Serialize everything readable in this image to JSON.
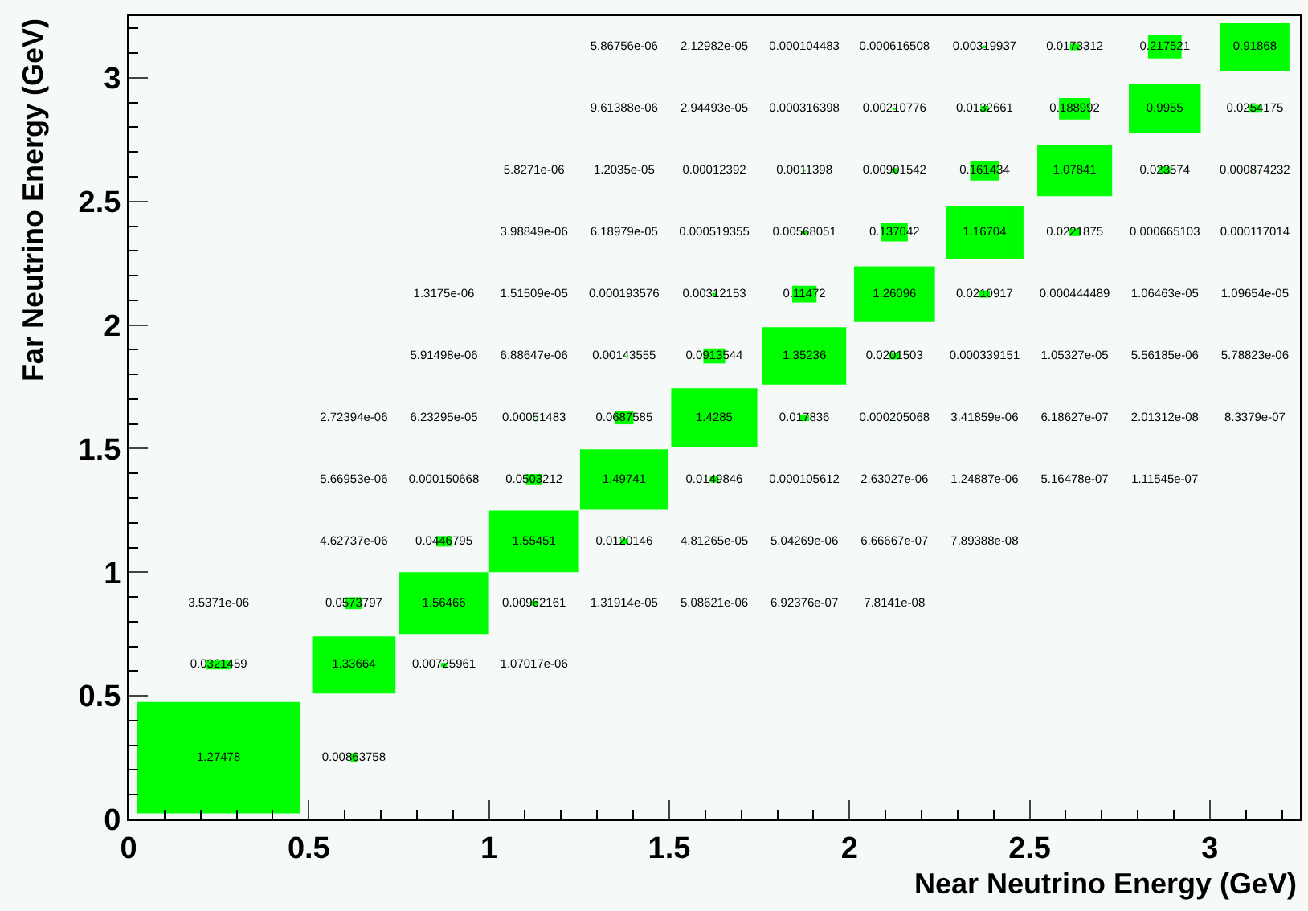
{
  "chart_data": {
    "type": "heatmap",
    "xlabel": "Near Neutrino Energy (GeV)",
    "ylabel": "Far Neutrino Energy (GeV)",
    "x": [
      0.25,
      0.625,
      0.875,
      1.125,
      1.375,
      1.625,
      1.875,
      2.125,
      2.375,
      2.625,
      2.875,
      3.125
    ],
    "y": [
      0.25,
      0.625,
      0.875,
      1.125,
      1.375,
      1.625,
      1.875,
      2.125,
      2.375,
      2.625,
      2.875,
      3.125
    ],
    "xlim": [
      0,
      3.25
    ],
    "ylim": [
      0,
      3.25
    ],
    "xticks": [
      0,
      0.5,
      1,
      1.5,
      2,
      2.5,
      3
    ],
    "yticks": [
      0,
      0.5,
      1,
      1.5,
      2,
      2.5,
      3
    ],
    "color": "#00ff00",
    "data_labels": true,
    "grid": false,
    "cells": [
      [
        1.27478,
        0.00863758,
        null,
        null,
        null,
        null,
        null,
        null,
        null,
        null,
        null,
        null
      ],
      [
        0.0321459,
        1.33664,
        0.00725961,
        1.07017e-06,
        null,
        null,
        null,
        null,
        null,
        null,
        null,
        null
      ],
      [
        3.5371e-06,
        0.0573797,
        1.56466,
        0.00962161,
        1.31914e-05,
        5.08621e-06,
        6.92376e-07,
        7.8141e-08,
        null,
        null,
        null,
        null
      ],
      [
        null,
        4.62737e-06,
        0.0446795,
        1.55451,
        0.0120146,
        4.81265e-05,
        5.04269e-06,
        6.66667e-07,
        7.89388e-08,
        null,
        null,
        null
      ],
      [
        null,
        5.66953e-06,
        0.000150668,
        0.0503212,
        1.49741,
        0.0149846,
        0.000105612,
        2.63027e-06,
        1.24887e-06,
        5.16478e-07,
        1.11545e-07,
        null
      ],
      [
        null,
        2.72394e-06,
        6.23295e-05,
        0.00051483,
        0.0687585,
        1.4285,
        0.017836,
        0.000205068,
        3.41859e-06,
        6.18627e-07,
        2.01312e-08,
        8.3379e-07
      ],
      [
        null,
        null,
        5.91498e-06,
        6.88647e-06,
        0.00143555,
        0.0913544,
        1.35236,
        0.0201503,
        0.000339151,
        1.05327e-05,
        5.56185e-06,
        5.78823e-06
      ],
      [
        null,
        null,
        1.3175e-06,
        1.51509e-05,
        0.000193576,
        0.00312153,
        0.11472,
        1.26096,
        0.0210917,
        0.000444489,
        1.06463e-05,
        1.09654e-05
      ],
      [
        null,
        null,
        null,
        3.98849e-06,
        6.18979e-05,
        0.000519355,
        0.00568051,
        0.137042,
        1.16704,
        0.0221875,
        0.000665103,
        0.000117014
      ],
      [
        null,
        null,
        null,
        5.8271e-06,
        1.2035e-05,
        0.00012392,
        0.0011398,
        0.00901542,
        0.161434,
        1.07841,
        0.023574,
        0.000874232
      ],
      [
        null,
        null,
        null,
        null,
        9.61388e-06,
        2.94493e-05,
        0.000316398,
        0.00210776,
        0.0132661,
        0.188992,
        0.9955,
        0.0254175
      ],
      [
        null,
        null,
        null,
        null,
        5.86756e-06,
        2.12982e-05,
        0.000104483,
        0.000616508,
        0.00319937,
        0.0173312,
        0.217521,
        0.91868
      ]
    ]
  }
}
